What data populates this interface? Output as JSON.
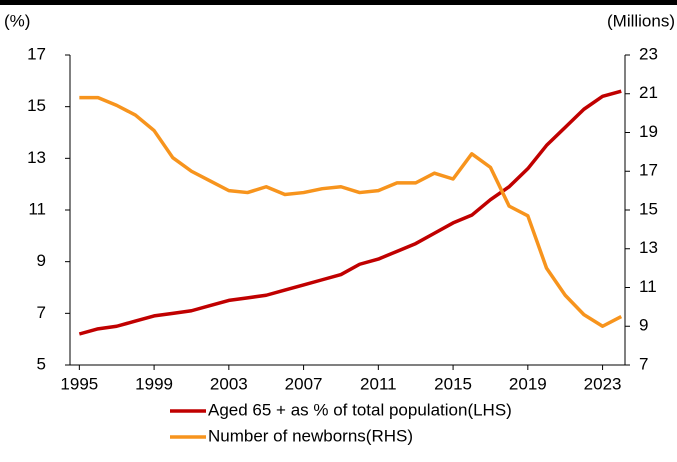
{
  "chart_data": {
    "type": "line",
    "y_label": "(%)",
    "y2_label": "(Millions)",
    "x": [
      1995,
      1996,
      1997,
      1998,
      1999,
      2000,
      2001,
      2002,
      2003,
      2004,
      2005,
      2006,
      2007,
      2008,
      2009,
      2010,
      2011,
      2012,
      2013,
      2014,
      2015,
      2016,
      2017,
      2018,
      2019,
      2020,
      2021,
      2022,
      2023,
      2024
    ],
    "series": [
      {
        "name": "Aged 65 + as % of total population(LHS)",
        "color": "#c00000",
        "values": [
          6.2,
          6.4,
          6.5,
          6.7,
          6.9,
          7.0,
          7.1,
          7.3,
          7.5,
          7.6,
          7.7,
          7.9,
          8.1,
          8.3,
          8.5,
          8.9,
          9.1,
          9.4,
          9.7,
          10.1,
          10.5,
          10.8,
          11.4,
          11.9,
          12.6,
          13.5,
          14.2,
          14.9,
          15.4,
          15.6
        ]
      },
      {
        "name": "Number of newborns(RHS)",
        "color": "#f7941d",
        "axis": "y2",
        "values": [
          20.8,
          20.8,
          20.4,
          19.9,
          19.1,
          17.7,
          17.0,
          16.5,
          16.0,
          15.9,
          16.2,
          15.8,
          15.9,
          16.1,
          16.2,
          15.9,
          16.0,
          16.4,
          16.4,
          16.9,
          16.6,
          17.9,
          17.2,
          15.2,
          14.7,
          12.0,
          10.6,
          9.6,
          9.0,
          9.5
        ]
      }
    ],
    "xlim": [
      1994.5,
      2024.2
    ],
    "xticks": [
      1995,
      1999,
      2003,
      2007,
      2011,
      2015,
      2019,
      2023
    ],
    "ylim": [
      5,
      17
    ],
    "yticks": [
      5,
      7,
      9,
      11,
      13,
      15,
      17
    ],
    "y2lim": [
      7,
      23
    ],
    "y2ticks": [
      7,
      9,
      11,
      13,
      15,
      17,
      19,
      21,
      23
    ],
    "grid": false,
    "legend": "bottom"
  }
}
